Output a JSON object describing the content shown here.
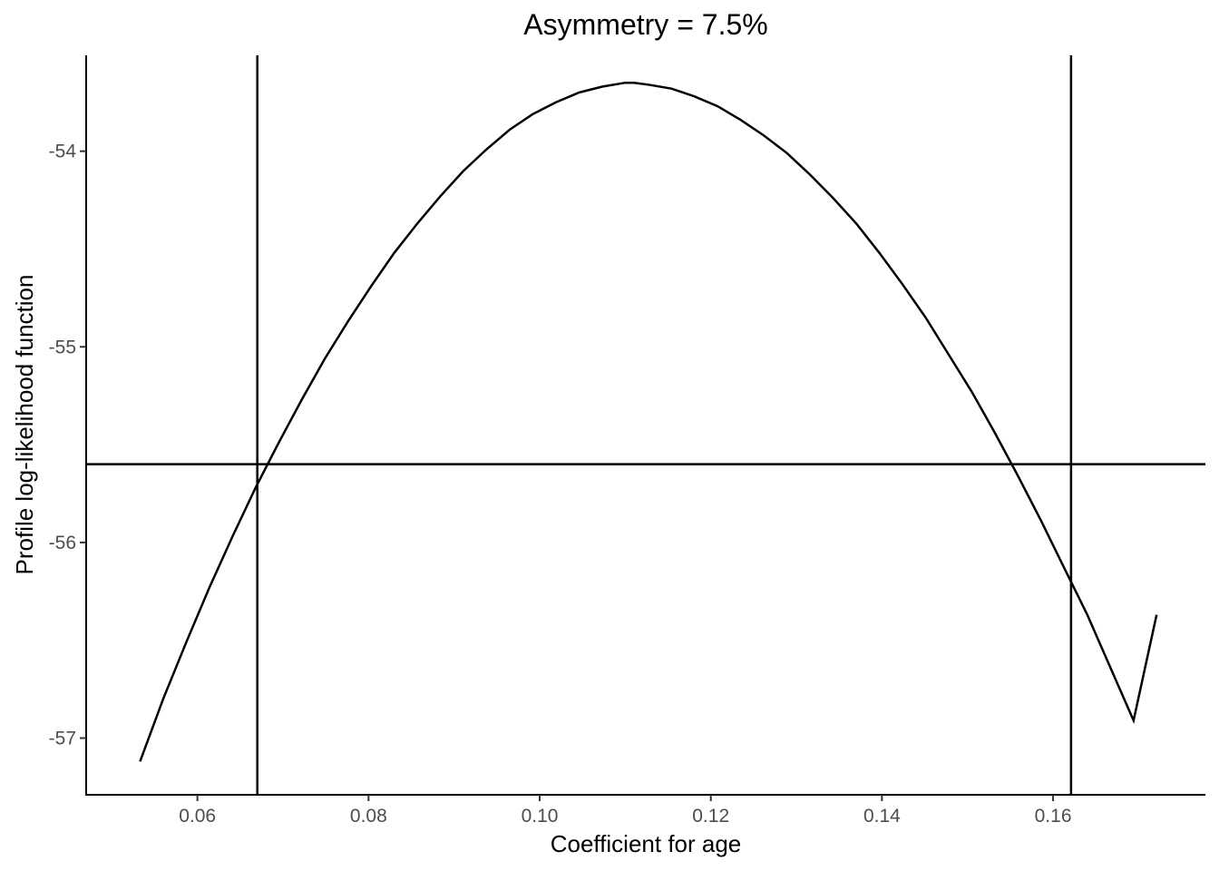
{
  "chart_data": {
    "type": "line",
    "title": "Asymmetry = 7.5%",
    "xlabel": "Coefficient for age",
    "ylabel": "Profile log-likelihood function",
    "xlim": [
      0.047,
      0.1778
    ],
    "ylim": [
      -57.29,
      -53.51
    ],
    "x_ticks": [
      0.06,
      0.08,
      0.1,
      0.12,
      0.14,
      0.16
    ],
    "x_tick_labels": [
      "0.06",
      "0.08",
      "0.10",
      "0.12",
      "0.14",
      "0.16"
    ],
    "y_ticks": [
      -54,
      -55,
      -56,
      -57
    ],
    "y_tick_labels": [
      "-54",
      "-55",
      "-56",
      "-57"
    ],
    "grid": false,
    "series": [
      {
        "color": "#000000",
        "x": [
          0.0533,
          0.056,
          0.0587,
          0.0614,
          0.0641,
          0.0668,
          0.0695,
          0.0722,
          0.0749,
          0.0776,
          0.0803,
          0.083,
          0.0857,
          0.0884,
          0.0911,
          0.0938,
          0.0965,
          0.0992,
          0.1019,
          0.1046,
          0.1073,
          0.11,
          0.111,
          0.1127,
          0.1154,
          0.1181,
          0.1208,
          0.1235,
          0.1262,
          0.1289,
          0.1316,
          0.1343,
          0.137,
          0.1397,
          0.1424,
          0.1451,
          0.1478,
          0.1505,
          0.1532,
          0.1559,
          0.1586,
          0.1613,
          0.164,
          0.1667,
          0.1694,
          0.1721
        ],
        "y": [
          -57.12,
          -56.8,
          -56.51,
          -56.23,
          -55.97,
          -55.72,
          -55.49,
          -55.27,
          -55.06,
          -54.87,
          -54.69,
          -54.52,
          -54.37,
          -54.23,
          -54.1,
          -53.99,
          -53.89,
          -53.81,
          -53.75,
          -53.7,
          -53.67,
          -53.65,
          -53.65,
          -53.66,
          -53.68,
          -53.72,
          -53.77,
          -53.84,
          -53.92,
          -54.01,
          -54.12,
          -54.24,
          -54.37,
          -54.52,
          -54.68,
          -54.85,
          -55.04,
          -55.23,
          -55.44,
          -55.66,
          -55.89,
          -56.13,
          -56.37,
          -56.64,
          -56.91,
          -56.37
        ]
      }
    ],
    "vlines": [
      0.067,
      0.1621
    ],
    "hline": -55.6
  }
}
